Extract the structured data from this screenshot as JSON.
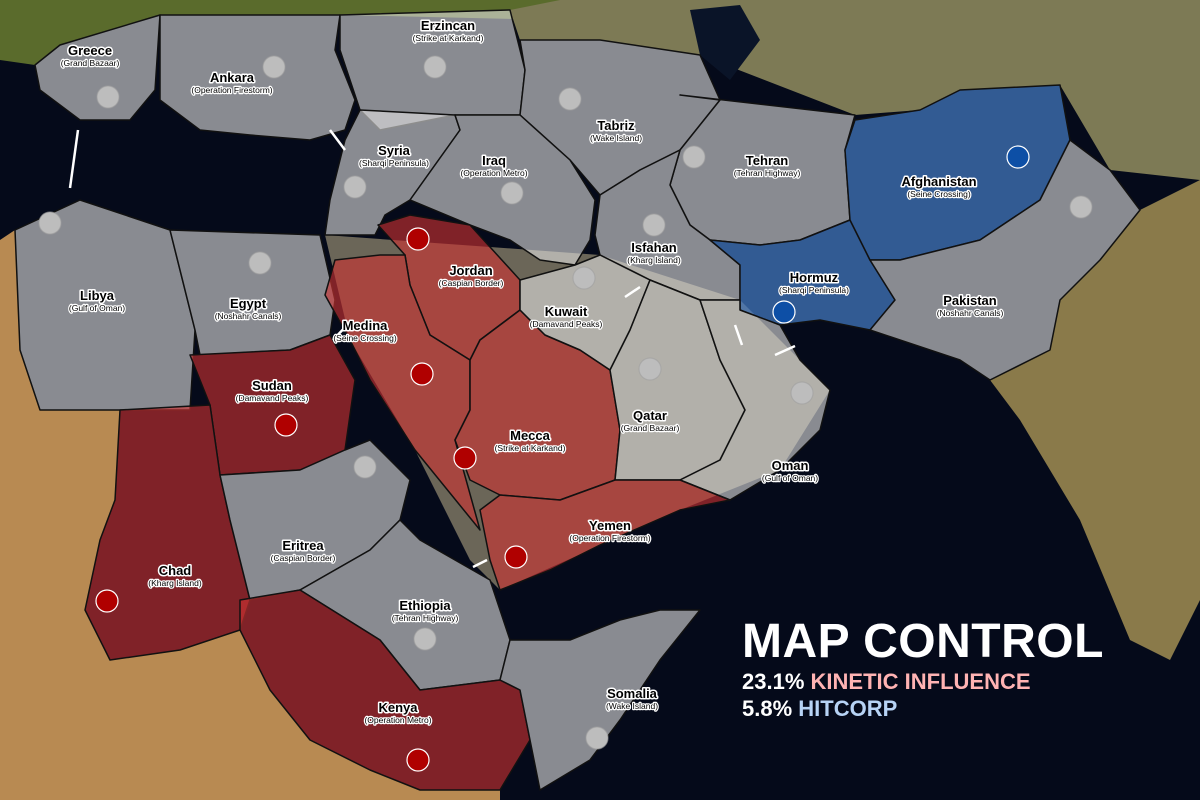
{
  "legend": {
    "title": "MAP CONTROL",
    "factions": [
      {
        "percent": "23.1%",
        "name": "KINETIC INFLUENCE",
        "color": "#ffb3b3"
      },
      {
        "percent": "5.8%",
        "name": "HITCORP",
        "color": "#b7d3f5"
      }
    ]
  },
  "owner_colors": {
    "neutral": "#bdbdbd",
    "kinetic": "#b00000",
    "hitcorp": "#0d4fa6"
  },
  "regions": [
    {
      "name": "Greece",
      "map": "(Grand Bazaar)",
      "owner": "neutral"
    },
    {
      "name": "Ankara",
      "map": "(Operation Firestorm)",
      "owner": "neutral"
    },
    {
      "name": "Erzincan",
      "map": "(Strike at Karkand)",
      "owner": "neutral"
    },
    {
      "name": "Tabriz",
      "map": "(Wake Island)",
      "owner": "neutral"
    },
    {
      "name": "Syria",
      "map": "(Sharqi Peninsula)",
      "owner": "neutral"
    },
    {
      "name": "Iraq",
      "map": "(Operation Metro)",
      "owner": "neutral"
    },
    {
      "name": "Tehran",
      "map": "(Tehran Highway)",
      "owner": "neutral"
    },
    {
      "name": "Isfahan",
      "map": "(Kharg Island)",
      "owner": "neutral"
    },
    {
      "name": "Hormuz",
      "map": "(Sharqi Peninsula)",
      "owner": "hitcorp"
    },
    {
      "name": "Afghanistan",
      "map": "(Seine Crossing)",
      "owner": "hitcorp"
    },
    {
      "name": "Pakistan",
      "map": "(Noshahr Canals)",
      "owner": "neutral"
    },
    {
      "name": "Libya",
      "map": "(Gulf of Oman)",
      "owner": "neutral"
    },
    {
      "name": "Egypt",
      "map": "(Noshahr Canals)",
      "owner": "neutral"
    },
    {
      "name": "Jordan",
      "map": "(Caspian Border)",
      "owner": "kinetic"
    },
    {
      "name": "Medina",
      "map": "(Seine Crossing)",
      "owner": "kinetic"
    },
    {
      "name": "Mecca",
      "map": "(Strike at Karkand)",
      "owner": "kinetic"
    },
    {
      "name": "Kuwait",
      "map": "(Damavand Peaks)",
      "owner": "neutral"
    },
    {
      "name": "Qatar",
      "map": "(Grand Bazaar)",
      "owner": "neutral"
    },
    {
      "name": "Oman",
      "map": "(Gulf of Oman)",
      "owner": "neutral"
    },
    {
      "name": "Sudan",
      "map": "(Damavand Peaks)",
      "owner": "kinetic"
    },
    {
      "name": "Chad",
      "map": "(Kharg Island)",
      "owner": "kinetic"
    },
    {
      "name": "Eritrea",
      "map": "(Caspian Border)",
      "owner": "neutral"
    },
    {
      "name": "Ethiopia",
      "map": "(Tehran Highway)",
      "owner": "neutral"
    },
    {
      "name": "Kenya",
      "map": "(Operation Metro)",
      "owner": "kinetic"
    },
    {
      "name": "Yemen",
      "map": "(Operation Firestorm)",
      "owner": "kinetic"
    },
    {
      "name": "Somalia",
      "map": "(Wake Island)",
      "owner": "neutral"
    }
  ]
}
